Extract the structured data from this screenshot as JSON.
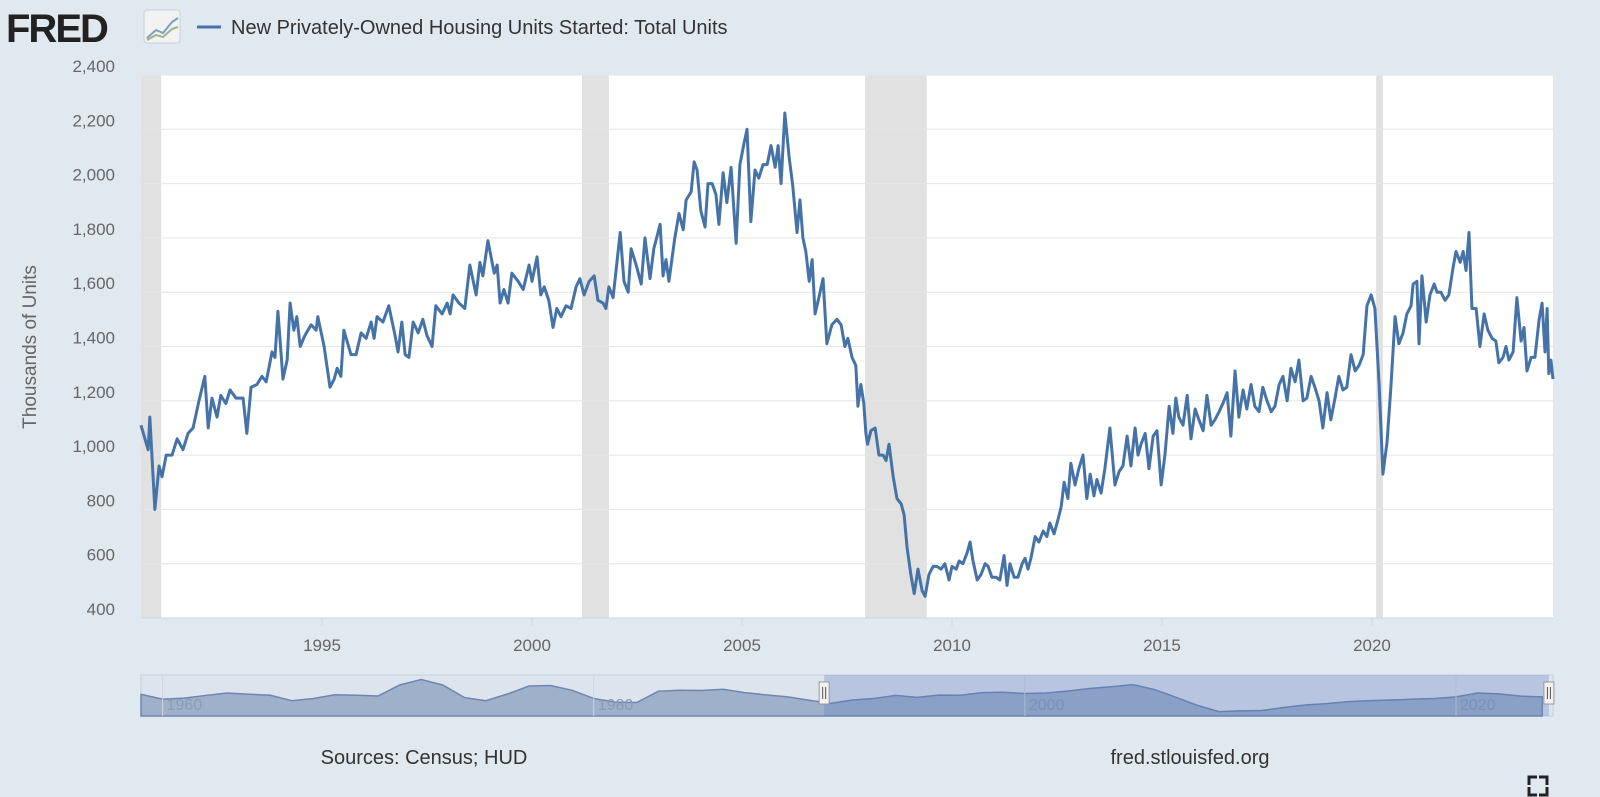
{
  "logo": "FRED",
  "chart_data": {
    "type": "line",
    "ylabel": "Thousands of Units",
    "source": "Sources: Census; HUD",
    "site": "fred.stlouisfed.org",
    "xlim": [
      1990.69,
      2024.31
    ],
    "xticks": [
      1995,
      2000,
      2005,
      2010,
      2015,
      2020
    ],
    "ylim": [
      400,
      2400
    ],
    "yticks": [
      400,
      600,
      800,
      {
        "value": 1000,
        "label": "1,000"
      },
      {
        "value": 1200,
        "label": "1,200"
      },
      {
        "value": 1400,
        "label": "1,400"
      },
      {
        "value": 1600,
        "label": "1,600"
      },
      {
        "value": 1800,
        "label": "1,800"
      },
      {
        "value": 2000,
        "label": "2,000"
      },
      {
        "value": 2200,
        "label": "2,200"
      },
      {
        "value": 2400,
        "label": "2,400"
      }
    ],
    "grid": true,
    "recessions": [
      [
        1990.69,
        1991.17
      ],
      [
        2001.19,
        2001.83
      ],
      [
        2007.93,
        2009.4
      ],
      [
        2020.1,
        2020.26
      ]
    ],
    "x": [
      1990.69,
      1990.86,
      1990.9,
      1991.02,
      1991.12,
      1991.19,
      1991.29,
      1991.43,
      1991.55,
      1991.69,
      1991.81,
      1991.93,
      1992.07,
      1992.21,
      1992.29,
      1992.38,
      1992.5,
      1992.59,
      1992.71,
      1992.81,
      1992.95,
      1993.12,
      1993.21,
      1993.31,
      1993.45,
      1993.57,
      1993.67,
      1993.81,
      1993.88,
      1993.95,
      1994.07,
      1994.17,
      1994.24,
      1994.33,
      1994.4,
      1994.48,
      1994.59,
      1994.74,
      1994.86,
      1994.9,
      1995.05,
      1995.19,
      1995.29,
      1995.36,
      1995.45,
      1995.52,
      1995.69,
      1995.81,
      1995.93,
      1996.05,
      1996.17,
      1996.24,
      1996.31,
      1996.45,
      1996.59,
      1996.74,
      1996.81,
      1996.9,
      1996.98,
      1997.07,
      1997.17,
      1997.29,
      1997.4,
      1997.5,
      1997.62,
      1997.71,
      1997.86,
      1997.98,
      1998.05,
      1998.12,
      1998.26,
      1998.4,
      1998.52,
      1998.67,
      1998.76,
      1998.83,
      1998.95,
      1999.1,
      1999.17,
      1999.24,
      1999.33,
      1999.43,
      1999.52,
      1999.67,
      1999.79,
      1999.93,
      2000.0,
      2000.12,
      2000.21,
      2000.29,
      2000.4,
      2000.5,
      2000.59,
      2000.69,
      2000.81,
      2000.93,
      2001.05,
      2001.14,
      2001.24,
      2001.36,
      2001.48,
      2001.57,
      2001.69,
      2001.76,
      2001.83,
      2001.93,
      2002.1,
      2002.19,
      2002.29,
      2002.36,
      2002.48,
      2002.6,
      2002.69,
      2002.81,
      2002.9,
      2003.05,
      2003.12,
      2003.19,
      2003.26,
      2003.4,
      2003.5,
      2003.6,
      2003.67,
      2003.79,
      2003.86,
      2003.93,
      2004.02,
      2004.12,
      2004.19,
      2004.29,
      2004.38,
      2004.45,
      2004.55,
      2004.64,
      2004.74,
      2004.86,
      2004.95,
      2005.05,
      2005.12,
      2005.21,
      2005.31,
      2005.4,
      2005.5,
      2005.6,
      2005.69,
      2005.79,
      2005.86,
      2005.93,
      2006.02,
      2006.12,
      2006.21,
      2006.31,
      2006.38,
      2006.45,
      2006.52,
      2006.6,
      2006.67,
      2006.74,
      2006.83,
      2006.93,
      2007.02,
      2007.14,
      2007.26,
      2007.36,
      2007.45,
      2007.52,
      2007.62,
      2007.71,
      2007.76,
      2007.83,
      2007.9,
      2007.95,
      2007.99,
      2008.07,
      2008.17,
      2008.26,
      2008.36,
      2008.43,
      2008.5,
      2008.6,
      2008.69,
      2008.79,
      2008.86,
      2008.93,
      2009.02,
      2009.1,
      2009.19,
      2009.29,
      2009.36,
      2009.45,
      2009.55,
      2009.64,
      2009.74,
      2009.83,
      2009.93,
      2010.0,
      2010.1,
      2010.17,
      2010.26,
      2010.36,
      2010.43,
      2010.5,
      2010.6,
      2010.69,
      2010.79,
      2010.86,
      2010.95,
      2011.05,
      2011.14,
      2011.24,
      2011.31,
      2011.38,
      2011.48,
      2011.57,
      2011.67,
      2011.74,
      2011.81,
      2011.88,
      2011.98,
      2012.07,
      2012.17,
      2012.26,
      2012.33,
      2012.43,
      2012.52,
      2012.6,
      2012.67,
      2012.76,
      2012.83,
      2012.93,
      2013.02,
      2013.12,
      2013.21,
      2013.29,
      2013.38,
      2013.45,
      2013.55,
      2013.64,
      2013.76,
      2013.88,
      2013.98,
      2014.07,
      2014.17,
      2014.26,
      2014.36,
      2014.43,
      2014.5,
      2014.6,
      2014.69,
      2014.79,
      2014.88,
      2014.98,
      2015.07,
      2015.17,
      2015.26,
      2015.33,
      2015.4,
      2015.5,
      2015.6,
      2015.69,
      2015.79,
      2015.88,
      2015.98,
      2016.07,
      2016.17,
      2016.26,
      2016.36,
      2016.45,
      2016.55,
      2016.64,
      2016.74,
      2016.83,
      2016.93,
      2017.02,
      2017.12,
      2017.21,
      2017.31,
      2017.4,
      2017.5,
      2017.6,
      2017.69,
      2017.79,
      2017.88,
      2017.98,
      2018.07,
      2018.17,
      2018.26,
      2018.36,
      2018.45,
      2018.55,
      2018.64,
      2018.74,
      2018.83,
      2018.93,
      2019.02,
      2019.12,
      2019.21,
      2019.31,
      2019.4,
      2019.5,
      2019.6,
      2019.69,
      2019.79,
      2019.88,
      2019.98,
      2020.07,
      2020.17,
      2020.26,
      2020.36,
      2020.45,
      2020.55,
      2020.64,
      2020.74,
      2020.83,
      2020.93,
      2020.98,
      2021.07,
      2021.12,
      2021.19,
      2021.29,
      2021.38,
      2021.48,
      2021.55,
      2021.64,
      2021.74,
      2021.83,
      2021.93,
      2022.0,
      2022.1,
      2022.17,
      2022.24,
      2022.31,
      2022.38,
      2022.48,
      2022.57,
      2022.67,
      2022.76,
      2022.86,
      2022.95,
      2023.02,
      2023.12,
      2023.19,
      2023.26,
      2023.36,
      2023.45,
      2023.55,
      2023.62,
      2023.69,
      2023.79,
      2023.88,
      2023.98,
      2024.05,
      2024.12,
      2024.17,
      2024.21,
      2024.26,
      2024.31
    ],
    "series": [
      {
        "name": "New Privately-Owned Housing Units Started: Total Units",
        "color": "#4572a7",
        "values": [
          1110,
          1020,
          1140,
          800,
          960,
          920,
          1000,
          1000,
          1060,
          1020,
          1080,
          1100,
          1200,
          1290,
          1100,
          1210,
          1140,
          1220,
          1190,
          1240,
          1210,
          1210,
          1080,
          1250,
          1260,
          1290,
          1270,
          1380,
          1360,
          1530,
          1280,
          1350,
          1560,
          1460,
          1510,
          1400,
          1440,
          1480,
          1460,
          1510,
          1400,
          1250,
          1280,
          1320,
          1290,
          1460,
          1370,
          1370,
          1450,
          1430,
          1490,
          1430,
          1510,
          1490,
          1550,
          1440,
          1380,
          1490,
          1370,
          1360,
          1490,
          1450,
          1500,
          1440,
          1400,
          1550,
          1520,
          1560,
          1520,
          1590,
          1560,
          1540,
          1700,
          1590,
          1710,
          1660,
          1790,
          1670,
          1700,
          1560,
          1610,
          1560,
          1670,
          1640,
          1610,
          1700,
          1640,
          1730,
          1590,
          1620,
          1570,
          1470,
          1540,
          1510,
          1550,
          1540,
          1620,
          1650,
          1590,
          1640,
          1660,
          1570,
          1560,
          1540,
          1620,
          1580,
          1820,
          1640,
          1600,
          1760,
          1700,
          1630,
          1800,
          1650,
          1760,
          1850,
          1660,
          1720,
          1640,
          1800,
          1890,
          1830,
          1940,
          1970,
          2080,
          2050,
          1900,
          1840,
          2000,
          2000,
          1960,
          1850,
          2040,
          1930,
          2060,
          1780,
          2070,
          2150,
          2200,
          1860,
          2050,
          2020,
          2070,
          2070,
          2140,
          2060,
          2140,
          2000,
          2260,
          2100,
          1990,
          1820,
          1940,
          1800,
          1750,
          1640,
          1720,
          1520,
          1580,
          1650,
          1410,
          1480,
          1500,
          1480,
          1400,
          1430,
          1360,
          1330,
          1180,
          1260,
          1190,
          1080,
          1040,
          1090,
          1100,
          1000,
          1000,
          980,
          1040,
          920,
          840,
          820,
          780,
          660,
          560,
          490,
          580,
          500,
          480,
          560,
          590,
          590,
          580,
          600,
          540,
          590,
          580,
          610,
          600,
          640,
          680,
          610,
          540,
          560,
          600,
          590,
          550,
          550,
          540,
          630,
          520,
          600,
          550,
          550,
          600,
          620,
          580,
          620,
          700,
          680,
          720,
          700,
          750,
          710,
          760,
          810,
          900,
          840,
          970,
          890,
          950,
          1000,
          840,
          930,
          850,
          910,
          860,
          950,
          1100,
          890,
          940,
          960,
          1070,
          960,
          1100,
          1000,
          1040,
          1080,
          950,
          1070,
          1090,
          890,
          1000,
          1180,
          1080,
          1210,
          1140,
          1110,
          1220,
          1060,
          1170,
          1130,
          1090,
          1220,
          1110,
          1130,
          1160,
          1190,
          1230,
          1070,
          1310,
          1140,
          1240,
          1170,
          1260,
          1180,
          1160,
          1250,
          1200,
          1160,
          1180,
          1260,
          1290,
          1200,
          1320,
          1270,
          1350,
          1200,
          1210,
          1290,
          1250,
          1200,
          1100,
          1230,
          1130,
          1210,
          1290,
          1240,
          1250,
          1370,
          1310,
          1330,
          1370,
          1550,
          1590,
          1540,
          1260,
          930,
          1050,
          1250,
          1510,
          1410,
          1450,
          1520,
          1550,
          1630,
          1640,
          1410,
          1660,
          1490,
          1590,
          1630,
          1600,
          1600,
          1570,
          1590,
          1690,
          1750,
          1710,
          1750,
          1680,
          1820,
          1540,
          1540,
          1400,
          1520,
          1460,
          1430,
          1420,
          1340,
          1360,
          1400,
          1350,
          1380,
          1580,
          1420,
          1470,
          1310,
          1360,
          1360,
          1500,
          1560,
          1380,
          1540,
          1300,
          1350,
          1280
        ]
      }
    ],
    "navigator": {
      "xlim": [
        1959,
        2024.5
      ],
      "ylim": [
        300,
        2500
      ],
      "xticks": [
        1960,
        1980,
        2000,
        2020
      ],
      "x": [
        1959,
        1960,
        1961,
        1962,
        1963,
        1964,
        1965,
        1966,
        1967,
        1968,
        1969,
        1970,
        1971,
        1972,
        1973,
        1974,
        1975,
        1976,
        1977,
        1978,
        1979,
        1980,
        1981,
        1982,
        1983,
        1984,
        1985,
        1986,
        1987,
        1988,
        1989,
        1990,
        1991,
        1992,
        1993,
        1994,
        1995,
        1996,
        1997,
        1998,
        1999,
        2000,
        2001,
        2002,
        2003,
        2004,
        2005,
        2006,
        2007,
        2008,
        2009,
        2010,
        2011,
        2012,
        2013,
        2014,
        2015,
        2016,
        2017,
        2018,
        2019,
        2020,
        2021,
        2022,
        2023,
        2024
      ],
      "values": [
        1520,
        1250,
        1310,
        1460,
        1600,
        1530,
        1470,
        1160,
        1290,
        1500,
        1470,
        1430,
        2050,
        2360,
        2050,
        1340,
        1160,
        1540,
        1990,
        2020,
        1750,
        1290,
        1080,
        1060,
        1700,
        1750,
        1740,
        1810,
        1620,
        1490,
        1380,
        1190,
        1010,
        1200,
        1290,
        1460,
        1350,
        1480,
        1470,
        1620,
        1640,
        1570,
        1600,
        1710,
        1850,
        1950,
        2070,
        1800,
        1360,
        900,
        550,
        590,
        610,
        780,
        920,
        1000,
        1110,
        1170,
        1200,
        1250,
        1290,
        1380,
        1600,
        1550,
        1420,
        1380
      ]
    }
  }
}
